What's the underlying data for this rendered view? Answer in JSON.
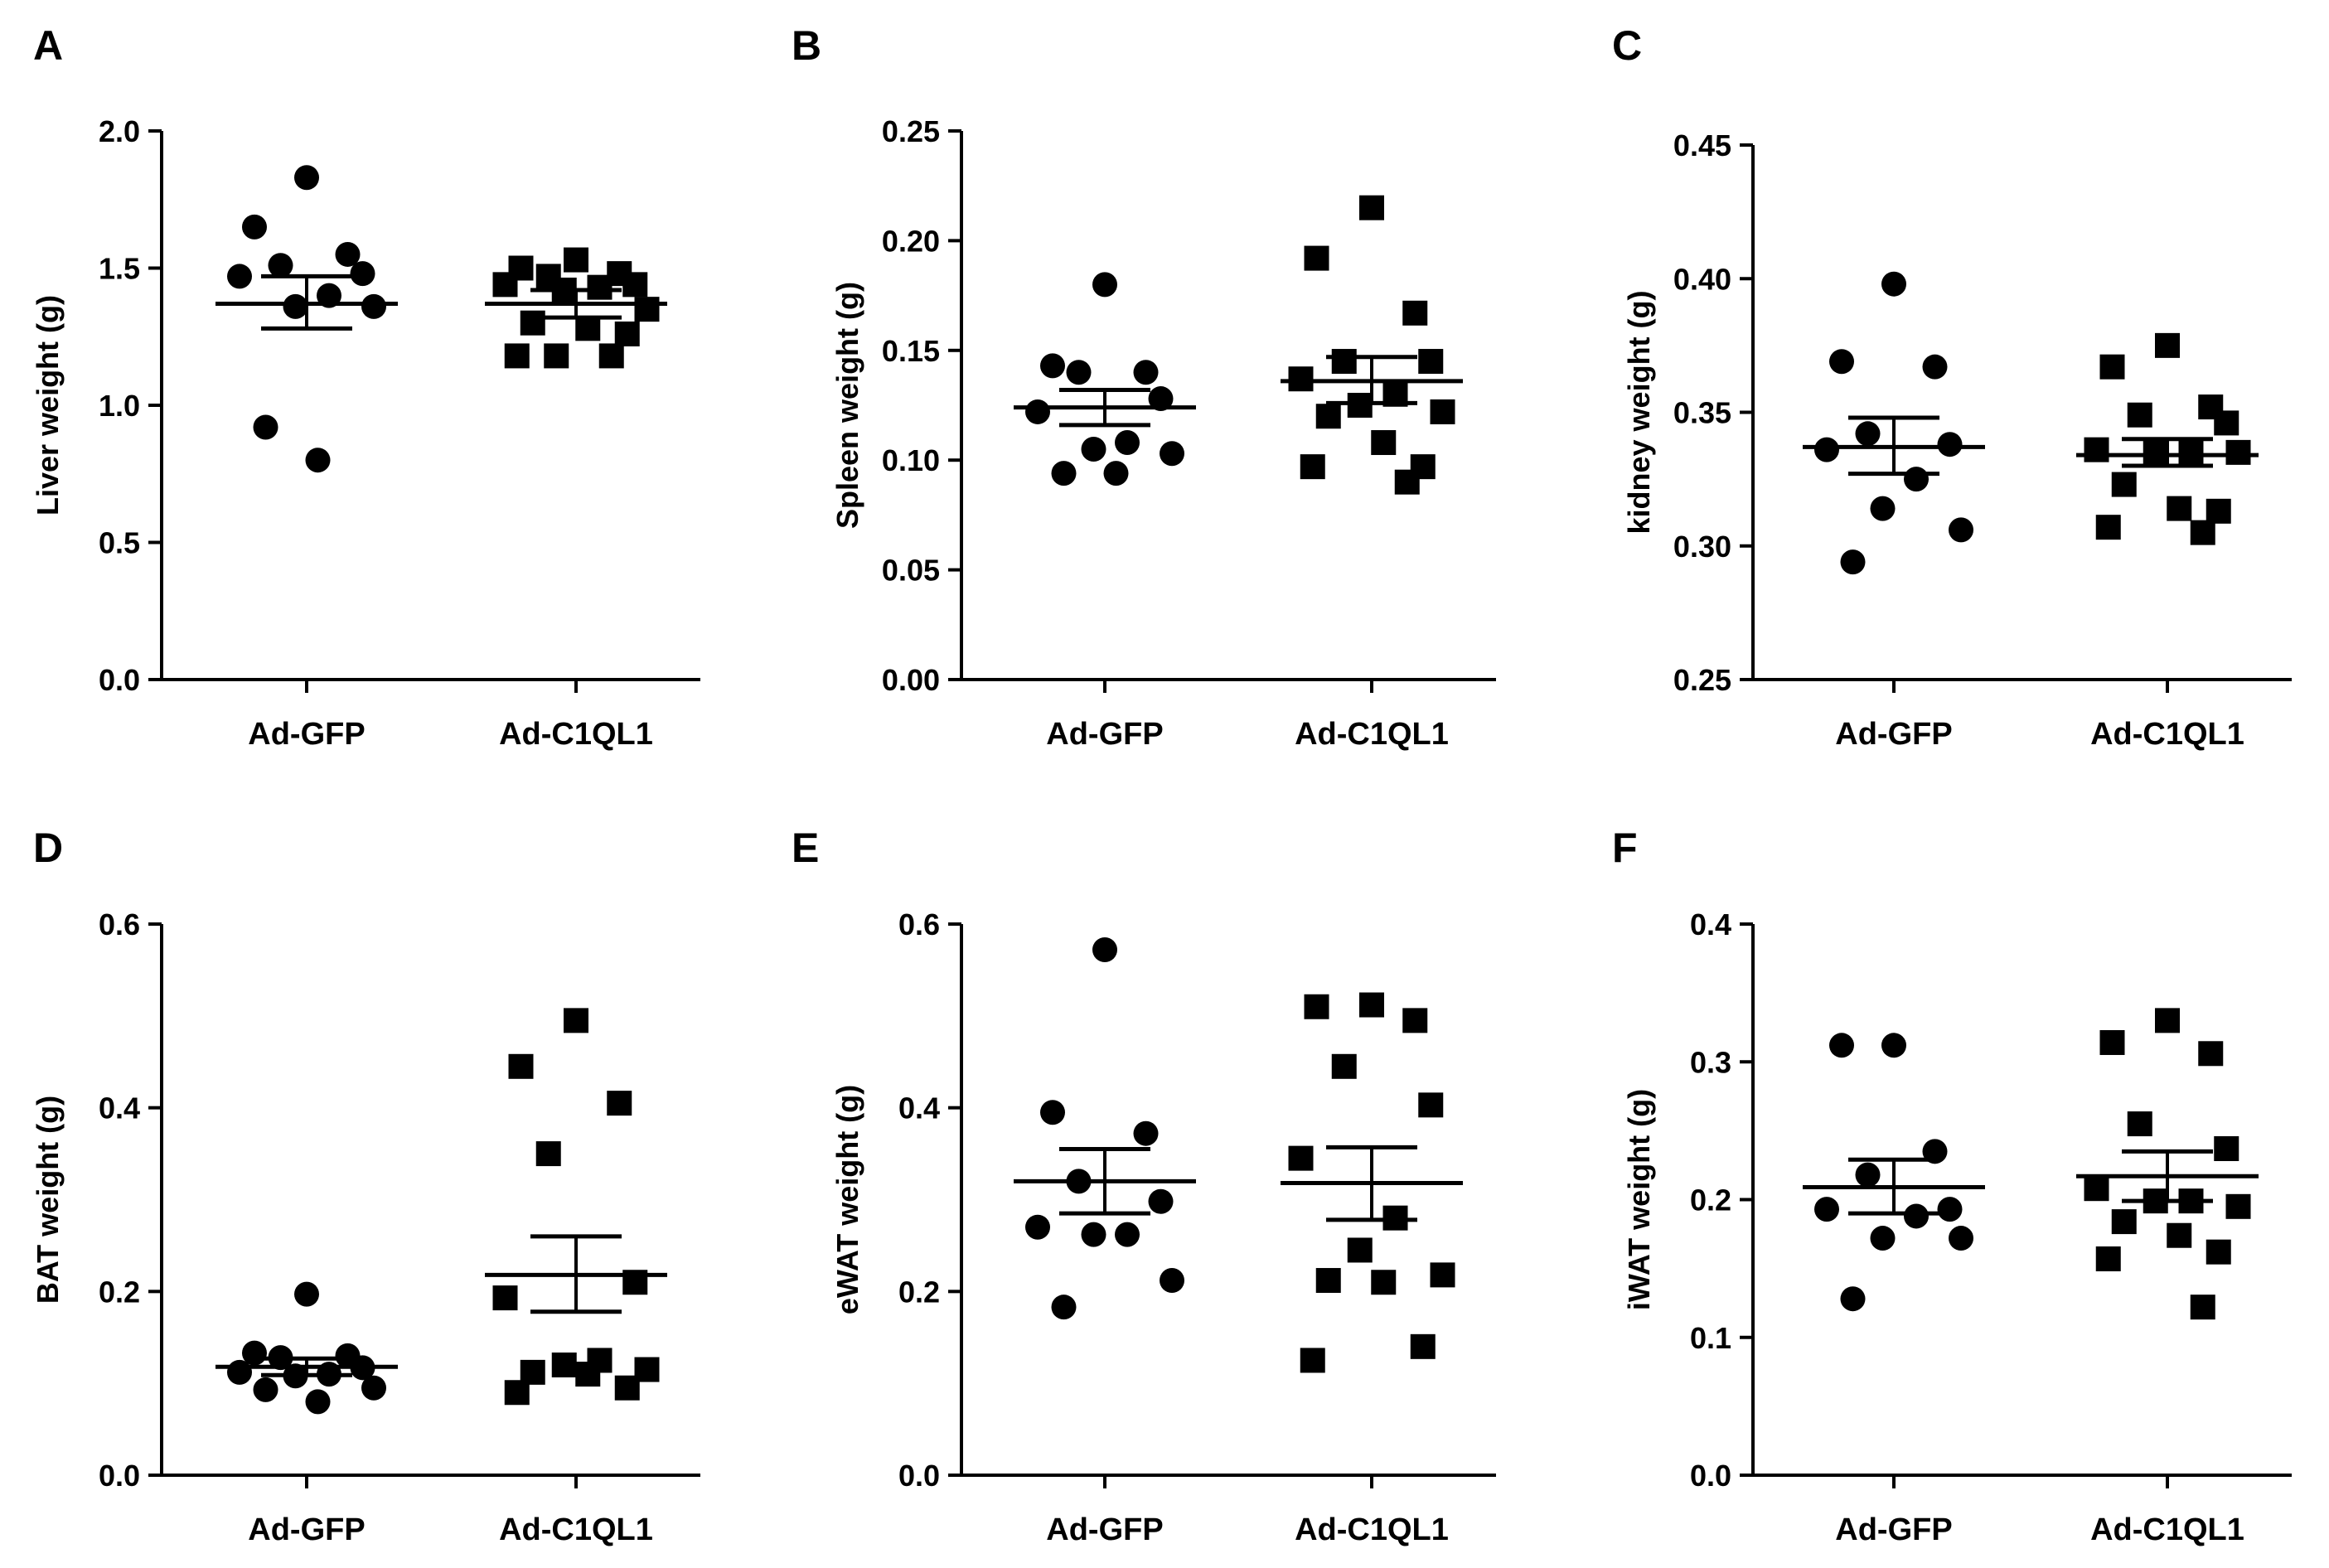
{
  "figure": {
    "background": "#ffffff",
    "ink": "#000000"
  },
  "chart_data": [
    {
      "type": "scatter",
      "panel_label": "A",
      "ylabel": "Liver weight (g)",
      "ylim": [
        0,
        2
      ],
      "yticks": [
        "0.0",
        "0.5",
        "1.0",
        "1.5",
        "2.0"
      ],
      "categories": [
        "Ad-GFP",
        "Ad-C1QL1"
      ],
      "series": [
        {
          "name": "Ad-GFP",
          "marker": "circle",
          "values": [
            1.83,
            1.65,
            1.55,
            1.51,
            1.48,
            1.47,
            1.4,
            1.36,
            1.36,
            0.92,
            0.8
          ],
          "mean": 1.37,
          "sem_upper": 1.47,
          "sem_lower": 1.28
        },
        {
          "name": "Ad-C1QL1",
          "marker": "square",
          "values": [
            1.53,
            1.5,
            1.48,
            1.47,
            1.44,
            1.44,
            1.43,
            1.42,
            1.35,
            1.3,
            1.28,
            1.26,
            1.18,
            1.18,
            1.18
          ],
          "mean": 1.37,
          "sem_upper": 1.42,
          "sem_lower": 1.32
        }
      ]
    },
    {
      "type": "scatter",
      "panel_label": "B",
      "ylabel": "Spleen weight (g)",
      "ylim": [
        0,
        0.25
      ],
      "yticks": [
        "0.00",
        "0.05",
        "0.10",
        "0.15",
        "0.20",
        "0.25"
      ],
      "categories": [
        "Ad-GFP",
        "Ad-C1QL1"
      ],
      "series": [
        {
          "name": "Ad-GFP",
          "marker": "circle",
          "values": [
            0.18,
            0.143,
            0.14,
            0.14,
            0.128,
            0.122,
            0.108,
            0.105,
            0.103,
            0.094,
            0.094
          ],
          "mean": 0.124,
          "sem_upper": 0.132,
          "sem_lower": 0.116
        },
        {
          "name": "Ad-C1QL1",
          "marker": "square",
          "values": [
            0.215,
            0.192,
            0.167,
            0.145,
            0.145,
            0.137,
            0.13,
            0.125,
            0.122,
            0.12,
            0.108,
            0.097,
            0.097,
            0.09
          ],
          "mean": 0.136,
          "sem_upper": 0.147,
          "sem_lower": 0.126
        }
      ]
    },
    {
      "type": "scatter",
      "panel_label": "C",
      "ylabel": "kidney weight (g)",
      "ylim": [
        0.25,
        0.45
      ],
      "yticks": [
        "0.25",
        "0.30",
        "0.35",
        "0.40",
        "0.45"
      ],
      "categories": [
        "Ad-GFP",
        "Ad-C1QL1"
      ],
      "series": [
        {
          "name": "Ad-GFP",
          "marker": "circle",
          "values": [
            0.398,
            0.369,
            0.367,
            0.342,
            0.338,
            0.336,
            0.325,
            0.314,
            0.306,
            0.294
          ],
          "mean": 0.337,
          "sem_upper": 0.348,
          "sem_lower": 0.327
        },
        {
          "name": "Ad-C1QL1",
          "marker": "square",
          "values": [
            0.375,
            0.367,
            0.352,
            0.349,
            0.346,
            0.336,
            0.335,
            0.335,
            0.335,
            0.323,
            0.314,
            0.313,
            0.307,
            0.305
          ],
          "mean": 0.334,
          "sem_upper": 0.34,
          "sem_lower": 0.33
        }
      ]
    },
    {
      "type": "scatter",
      "panel_label": "D",
      "ylabel": "BAT weight (g)",
      "ylim": [
        0,
        0.6
      ],
      "yticks": [
        "0.0",
        "0.2",
        "0.4",
        "0.6"
      ],
      "categories": [
        "Ad-GFP",
        "Ad-C1QL1"
      ],
      "series": [
        {
          "name": "Ad-GFP",
          "marker": "circle",
          "values": [
            0.197,
            0.133,
            0.13,
            0.128,
            0.117,
            0.112,
            0.11,
            0.108,
            0.095,
            0.093,
            0.08
          ],
          "mean": 0.118,
          "sem_upper": 0.127,
          "sem_lower": 0.109
        },
        {
          "name": "Ad-C1QL1",
          "marker": "square",
          "values": [
            0.495,
            0.445,
            0.405,
            0.35,
            0.21,
            0.193,
            0.125,
            0.12,
            0.115,
            0.112,
            0.11,
            0.095,
            0.09
          ],
          "mean": 0.218,
          "sem_upper": 0.26,
          "sem_lower": 0.178
        }
      ]
    },
    {
      "type": "scatter",
      "panel_label": "E",
      "ylabel": "eWAT weight (g)",
      "ylim": [
        0,
        0.6
      ],
      "yticks": [
        "0.0",
        "0.2",
        "0.4",
        "0.6"
      ],
      "categories": [
        "Ad-GFP",
        "Ad-C1QL1"
      ],
      "series": [
        {
          "name": "Ad-GFP",
          "marker": "circle",
          "values": [
            0.572,
            0.395,
            0.372,
            0.32,
            0.298,
            0.27,
            0.262,
            0.262,
            0.212,
            0.183
          ],
          "mean": 0.32,
          "sem_upper": 0.355,
          "sem_lower": 0.285
        },
        {
          "name": "Ad-C1QL1",
          "marker": "square",
          "values": [
            0.512,
            0.51,
            0.495,
            0.445,
            0.403,
            0.345,
            0.28,
            0.245,
            0.218,
            0.212,
            0.21,
            0.14,
            0.125
          ],
          "mean": 0.318,
          "sem_upper": 0.357,
          "sem_lower": 0.278
        }
      ]
    },
    {
      "type": "scatter",
      "panel_label": "F",
      "ylabel": "iWAT weight (g)",
      "ylim": [
        0,
        0.4
      ],
      "yticks": [
        "0.0",
        "0.1",
        "0.2",
        "0.3",
        "0.4"
      ],
      "categories": [
        "Ad-GFP",
        "Ad-C1QL1"
      ],
      "series": [
        {
          "name": "Ad-GFP",
          "marker": "circle",
          "values": [
            0.312,
            0.312,
            0.235,
            0.218,
            0.193,
            0.193,
            0.188,
            0.172,
            0.172,
            0.128
          ],
          "mean": 0.209,
          "sem_upper": 0.229,
          "sem_lower": 0.19
        },
        {
          "name": "Ad-C1QL1",
          "marker": "square",
          "values": [
            0.33,
            0.314,
            0.306,
            0.255,
            0.237,
            0.208,
            0.199,
            0.199,
            0.195,
            0.184,
            0.174,
            0.162,
            0.157,
            0.122
          ],
          "mean": 0.217,
          "sem_upper": 0.235,
          "sem_lower": 0.199
        }
      ]
    }
  ]
}
